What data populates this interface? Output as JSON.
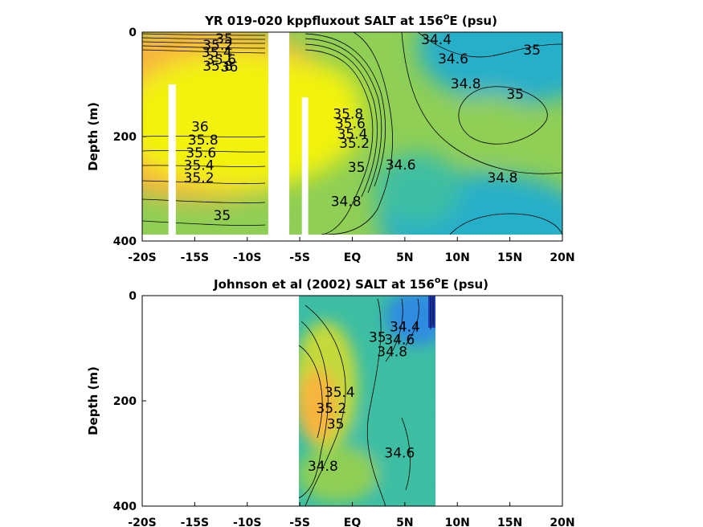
{
  "colors": {
    "yellow": "#f2f20f",
    "orange": "#f7b53c",
    "yellowgreen": "#c5d93a",
    "green": "#8fcf55",
    "teal": "#3dbea3",
    "cyan": "#27afc9",
    "blue": "#2f8ce0",
    "navy": "#1f3cb8"
  },
  "chart_data": [
    {
      "type": "heatmap",
      "title_main": "YR 019-020 kppfluxout SALT at 156",
      "title_sup": "o",
      "title_tail": "E (psu)",
      "ylabel": "Depth (m)",
      "xlim": [
        -20,
        20
      ],
      "ylim": [
        400,
        0
      ],
      "xticks": [
        -20,
        -15,
        -10,
        -5,
        0,
        5,
        10,
        15,
        20
      ],
      "xtick_labels": [
        "-20S",
        "-15S",
        "-10S",
        "-5S",
        "EQ",
        "5N",
        "10N",
        "15N",
        "20N"
      ],
      "yticks": [
        0,
        200,
        400
      ],
      "ytick_labels": [
        "0",
        "200",
        "400"
      ],
      "data_gaps_lat": [
        [
          -17.5,
          -16.8
        ],
        [
          -8.0,
          -6.0
        ],
        [
          -4.8,
          -4.2
        ]
      ],
      "contour_labels": [
        {
          "text": "35",
          "lat": -12.2,
          "depth": 14
        },
        {
          "text": "35.2",
          "lat": -12.8,
          "depth": 26
        },
        {
          "text": "35.4",
          "lat": -12.9,
          "depth": 40
        },
        {
          "text": "35.6",
          "lat": -12.5,
          "depth": 54
        },
        {
          "text": "35.8",
          "lat": -12.8,
          "depth": 66
        },
        {
          "text": "36",
          "lat": -11.7,
          "depth": 68
        },
        {
          "text": "36",
          "lat": -14.5,
          "depth": 182
        },
        {
          "text": "35.8",
          "lat": -14.2,
          "depth": 208
        },
        {
          "text": "35.6",
          "lat": -14.4,
          "depth": 232
        },
        {
          "text": "35.4",
          "lat": -14.6,
          "depth": 256
        },
        {
          "text": "35.2",
          "lat": -14.6,
          "depth": 280
        },
        {
          "text": "35",
          "lat": -12.4,
          "depth": 352
        },
        {
          "text": "35.8",
          "lat": -0.4,
          "depth": 158
        },
        {
          "text": "35.6",
          "lat": -0.2,
          "depth": 176
        },
        {
          "text": "35.4",
          "lat": 0.0,
          "depth": 196
        },
        {
          "text": "35.2",
          "lat": 0.2,
          "depth": 214
        },
        {
          "text": "35",
          "lat": 0.4,
          "depth": 260
        },
        {
          "text": "34.8",
          "lat": -0.6,
          "depth": 325
        },
        {
          "text": "34.6",
          "lat": 4.6,
          "depth": 255
        },
        {
          "text": "34.4",
          "lat": 8.0,
          "depth": 15
        },
        {
          "text": "34.6",
          "lat": 9.6,
          "depth": 52
        },
        {
          "text": "34.8",
          "lat": 10.8,
          "depth": 100
        },
        {
          "text": "35",
          "lat": 17.1,
          "depth": 35
        },
        {
          "text": "35",
          "lat": 15.5,
          "depth": 120
        },
        {
          "text": "34.8",
          "lat": 14.3,
          "depth": 280
        }
      ]
    },
    {
      "type": "heatmap",
      "title_main": "Johnson et al (2002) SALT at 156",
      "title_sup": "o",
      "title_tail": "E (psu)",
      "ylabel": "Depth (m)",
      "xlim": [
        -20,
        20
      ],
      "ylim": [
        400,
        0
      ],
      "xticks": [
        -20,
        -15,
        -10,
        -5,
        0,
        5,
        10,
        15,
        20
      ],
      "xtick_labels": [
        "-20S",
        "-15S",
        "-10S",
        "-5S",
        "EQ",
        "5N",
        "10N",
        "15N",
        "20N"
      ],
      "yticks": [
        0,
        200,
        400
      ],
      "ytick_labels": [
        "0",
        "200",
        "400"
      ],
      "data_extent_lat": [
        -5,
        8
      ],
      "contour_labels": [
        {
          "text": "34.4",
          "lat": 5.0,
          "depth": 60
        },
        {
          "text": "34.6",
          "lat": 4.5,
          "depth": 85
        },
        {
          "text": "34.8",
          "lat": 3.8,
          "depth": 108
        },
        {
          "text": "35",
          "lat": 2.4,
          "depth": 80
        },
        {
          "text": "35.4",
          "lat": -1.2,
          "depth": 185
        },
        {
          "text": "35.2",
          "lat": -2.0,
          "depth": 215
        },
        {
          "text": "35",
          "lat": -1.6,
          "depth": 245
        },
        {
          "text": "34.6",
          "lat": 4.5,
          "depth": 300
        },
        {
          "text": "34.8",
          "lat": -2.8,
          "depth": 325
        }
      ]
    }
  ]
}
